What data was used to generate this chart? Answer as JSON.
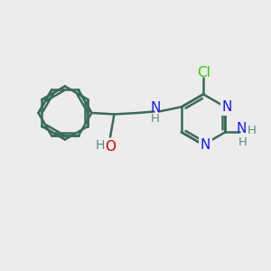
{
  "bg_color": "#ececec",
  "bond_color": "#3a6b5a",
  "n_color": "#1a1aff",
  "o_color": "#cc0000",
  "cl_color": "#33cc00",
  "h_color": "#5a8a7a",
  "lw": 1.8,
  "figsize": [
    3.0,
    3.0
  ],
  "dpi": 100,
  "xlim": [
    0,
    10
  ],
  "ylim": [
    0,
    10
  ]
}
